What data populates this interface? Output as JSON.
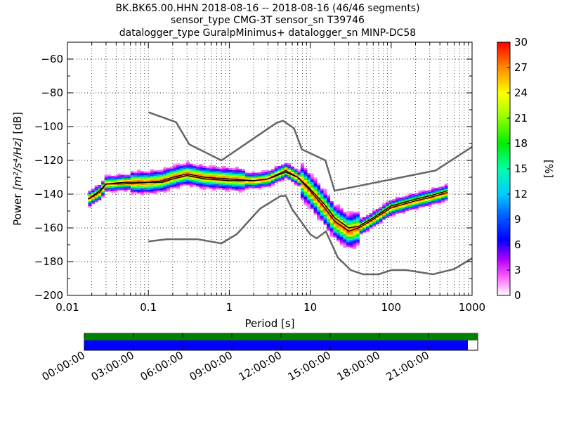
{
  "title": {
    "line1": "BK.BK65.00.HHN   2018-08-16 -- 2018-08-16  (46/46 segments)",
    "line2": "sensor_type CMG-3T sensor_sn T39746",
    "line3": "datalogger_type GuralpMinimus+ datalogger_sn MINP-DC58"
  },
  "chart_data": {
    "type": "heatmap",
    "xlabel": "Period [s]",
    "ylabel_prefix": "Power ",
    "ylabel_units": "[m²/s⁴/Hz]",
    "ylabel_suffix": " [dB]",
    "x_scale": "log",
    "xlim": [
      0.01,
      1000
    ],
    "ylim": [
      -200,
      -50
    ],
    "x_ticks": [
      {
        "value": 0.01,
        "label": "0.01"
      },
      {
        "value": 0.1,
        "label": "0.1"
      },
      {
        "value": 1,
        "label": "1"
      },
      {
        "value": 10,
        "label": "10"
      },
      {
        "value": 100,
        "label": "100"
      },
      {
        "value": 1000,
        "label": "1000"
      }
    ],
    "y_ticks": [
      {
        "value": -60,
        "label": "−60"
      },
      {
        "value": -80,
        "label": "−80"
      },
      {
        "value": -100,
        "label": "−100"
      },
      {
        "value": -120,
        "label": "−120"
      },
      {
        "value": -140,
        "label": "−140"
      },
      {
        "value": -160,
        "label": "−160"
      },
      {
        "value": -180,
        "label": "−180"
      },
      {
        "value": -200,
        "label": "−200"
      }
    ],
    "grid": "dotted",
    "colorbar": {
      "label": "[%]",
      "min": 0,
      "max": 30,
      "ticks": [
        "0",
        "3",
        "6",
        "9",
        "12",
        "15",
        "18",
        "21",
        "24",
        "27",
        "30"
      ]
    },
    "mode_curve": [
      [
        0.018,
        -143
      ],
      [
        0.025,
        -139
      ],
      [
        0.03,
        -134
      ],
      [
        0.05,
        -133
      ],
      [
        0.1,
        -133
      ],
      [
        0.15,
        -132
      ],
      [
        0.2,
        -130
      ],
      [
        0.3,
        -128
      ],
      [
        0.5,
        -130
      ],
      [
        1,
        -131
      ],
      [
        2,
        -132
      ],
      [
        3,
        -131
      ],
      [
        5,
        -126
      ],
      [
        7,
        -130
      ],
      [
        10,
        -138
      ],
      [
        15,
        -148
      ],
      [
        20,
        -156
      ],
      [
        30,
        -162
      ],
      [
        40,
        -160
      ],
      [
        60,
        -155
      ],
      [
        100,
        -148
      ],
      [
        200,
        -144
      ],
      [
        300,
        -142
      ],
      [
        500,
        -139
      ]
    ],
    "mean_curve": [
      [
        0.018,
        -143
      ],
      [
        0.025,
        -138
      ],
      [
        0.03,
        -134
      ],
      [
        0.05,
        -134
      ],
      [
        0.1,
        -133
      ],
      [
        0.15,
        -133
      ],
      [
        0.2,
        -131
      ],
      [
        0.3,
        -129
      ],
      [
        0.5,
        -131
      ],
      [
        1,
        -132
      ],
      [
        2,
        -132
      ],
      [
        3,
        -131
      ],
      [
        5,
        -127
      ],
      [
        7,
        -130
      ],
      [
        10,
        -137
      ],
      [
        15,
        -146
      ],
      [
        20,
        -154
      ],
      [
        30,
        -160
      ],
      [
        40,
        -159
      ],
      [
        60,
        -154
      ],
      [
        100,
        -147
      ],
      [
        200,
        -143
      ],
      [
        300,
        -141
      ],
      [
        500,
        -138
      ]
    ],
    "nhnm": [
      [
        0.1,
        -91.5
      ],
      [
        0.22,
        -97.4
      ],
      [
        0.32,
        -110.5
      ],
      [
        0.8,
        -120
      ],
      [
        3.8,
        -97.9
      ],
      [
        4.6,
        -96.5
      ],
      [
        6.3,
        -101
      ],
      [
        7.9,
        -113.5
      ],
      [
        15.4,
        -120
      ],
      [
        20,
        -138
      ],
      [
        354.8,
        -126
      ],
      [
        1000,
        -112
      ]
    ],
    "nlnm": [
      [
        0.1,
        -168
      ],
      [
        0.17,
        -166.7
      ],
      [
        0.4,
        -166.7
      ],
      [
        0.8,
        -169.2
      ],
      [
        1.24,
        -163.7
      ],
      [
        2.4,
        -148.6
      ],
      [
        4.3,
        -141.1
      ],
      [
        5,
        -141.1
      ],
      [
        6,
        -149
      ],
      [
        10,
        -163.8
      ],
      [
        12,
        -166.2
      ],
      [
        15.6,
        -162.1
      ],
      [
        21.9,
        -177.5
      ],
      [
        31.6,
        -185
      ],
      [
        45,
        -187.5
      ],
      [
        70,
        -187.5
      ],
      [
        101,
        -185
      ],
      [
        154,
        -185
      ],
      [
        328,
        -187.5
      ],
      [
        600,
        -184.4
      ],
      [
        1000,
        -178
      ]
    ]
  },
  "timeline": {
    "ticks": [
      "00:00:00",
      "03:00:00",
      "06:00:00",
      "09:00:00",
      "12:00:00",
      "15:00:00",
      "18:00:00",
      "21:00:00"
    ],
    "data_coverage": 1.0,
    "psd_coverage": 0.975,
    "colors": {
      "data": "#008000",
      "psd": "#0000ff"
    }
  }
}
